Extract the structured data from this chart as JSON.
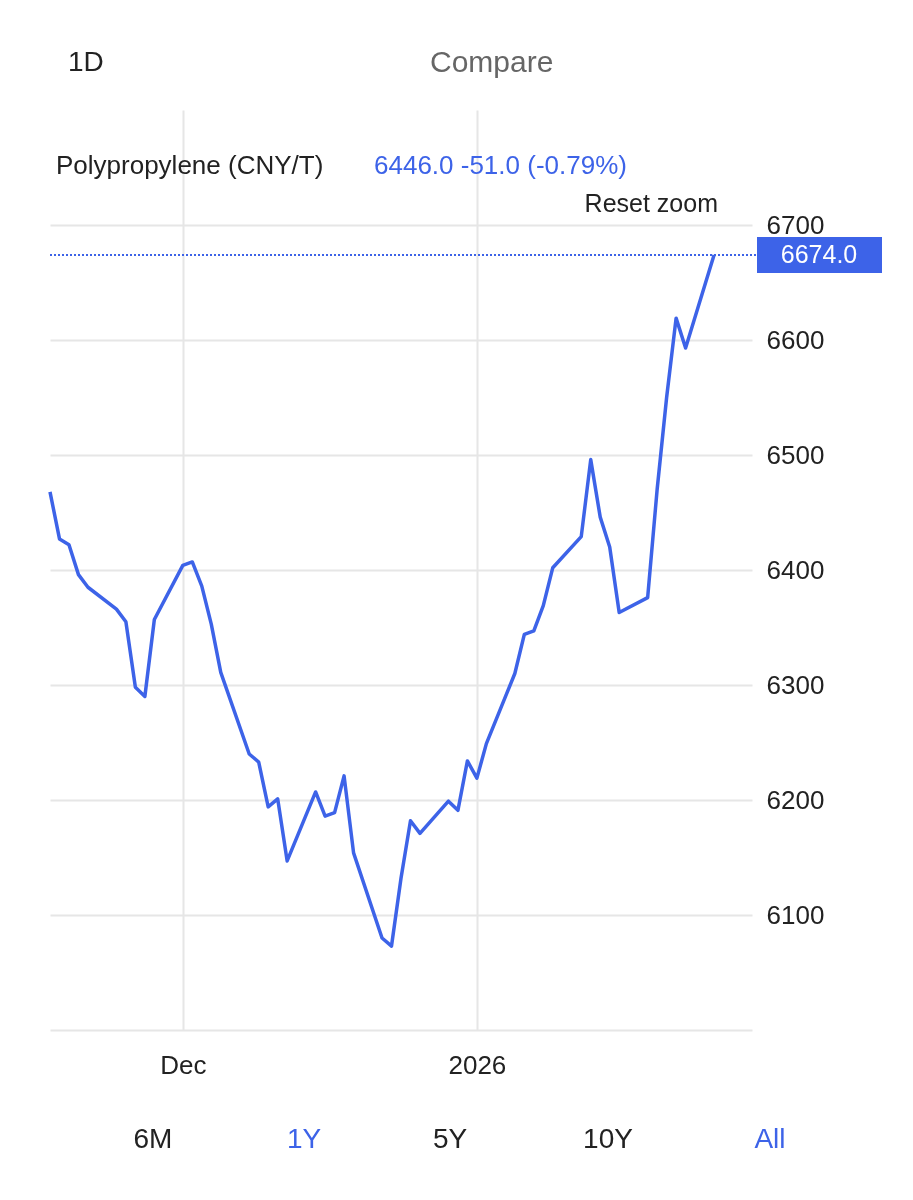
{
  "chart_data": {
    "type": "line",
    "title": "Polypropylene (CNY/T)",
    "subtitle": "6446.0  -51.0 (-0.79%)",
    "x": [
      "2025-11-17",
      "2025-11-18",
      "2025-11-19",
      "2025-11-20",
      "2025-11-21",
      "2025-11-24",
      "2025-11-25",
      "2025-11-26",
      "2025-11-27",
      "2025-11-28",
      "2025-12-01",
      "2025-12-02",
      "2025-12-03",
      "2025-12-04",
      "2025-12-05",
      "2025-12-08",
      "2025-12-09",
      "2025-12-10",
      "2025-12-11",
      "2025-12-12",
      "2025-12-15",
      "2025-12-16",
      "2025-12-17",
      "2025-12-18",
      "2025-12-19",
      "2025-12-22",
      "2025-12-23",
      "2025-12-24",
      "2025-12-25",
      "2025-12-26",
      "2025-12-29",
      "2025-12-30",
      "2025-12-31",
      "2026-01-01",
      "2026-01-02",
      "2026-01-05",
      "2026-01-06",
      "2026-01-07",
      "2026-01-08",
      "2026-01-09",
      "2026-01-12",
      "2026-01-13",
      "2026-01-14",
      "2026-01-15",
      "2026-01-16",
      "2026-01-19",
      "2026-01-20",
      "2026-01-21",
      "2026-01-22",
      "2026-01-23",
      "2026-01-26"
    ],
    "series": [
      {
        "color": "#3d63e8",
        "values": [
          6468,
          6427,
          6422,
          6396,
          6385,
          6366,
          6355,
          6298,
          6290,
          6357,
          6404,
          6407,
          6386,
          6353,
          6311,
          6240,
          6233,
          6194,
          6201,
          6147,
          6207,
          6186,
          6189,
          6221,
          6154,
          6080,
          6073,
          6132,
          6182,
          6171,
          6199,
          6191,
          6234,
          6219,
          6249,
          6310,
          6344,
          6347,
          6369,
          6402,
          6429,
          6496,
          6446,
          6420,
          6363,
          6376,
          6470,
          6550,
          6619,
          6593,
          6674
        ]
      }
    ],
    "xlim": [
      "2025-11-17",
      "2026-01-30"
    ],
    "xticks": [
      {
        "value": "2025-12-01",
        "label": "Dec"
      },
      {
        "value": "2026-01-01",
        "label": "2026"
      }
    ],
    "ylim": [
      6000,
      6800
    ],
    "yticks": [
      {
        "value": 6000,
        "label": null
      },
      6100,
      6200,
      6300,
      6400,
      6500,
      6600,
      6700
    ],
    "ref_lines": [
      {
        "axis": "y",
        "value": 6674,
        "label": "6674.0",
        "color": "#3d63e8",
        "line_style": "dotted"
      }
    ],
    "annotations": [
      "Reset zoom",
      "1D",
      "Compare",
      "6M",
      "1Y",
      "5Y",
      "10Y",
      "All"
    ],
    "grid": true,
    "marker": "none",
    "line_style": "solid"
  }
}
